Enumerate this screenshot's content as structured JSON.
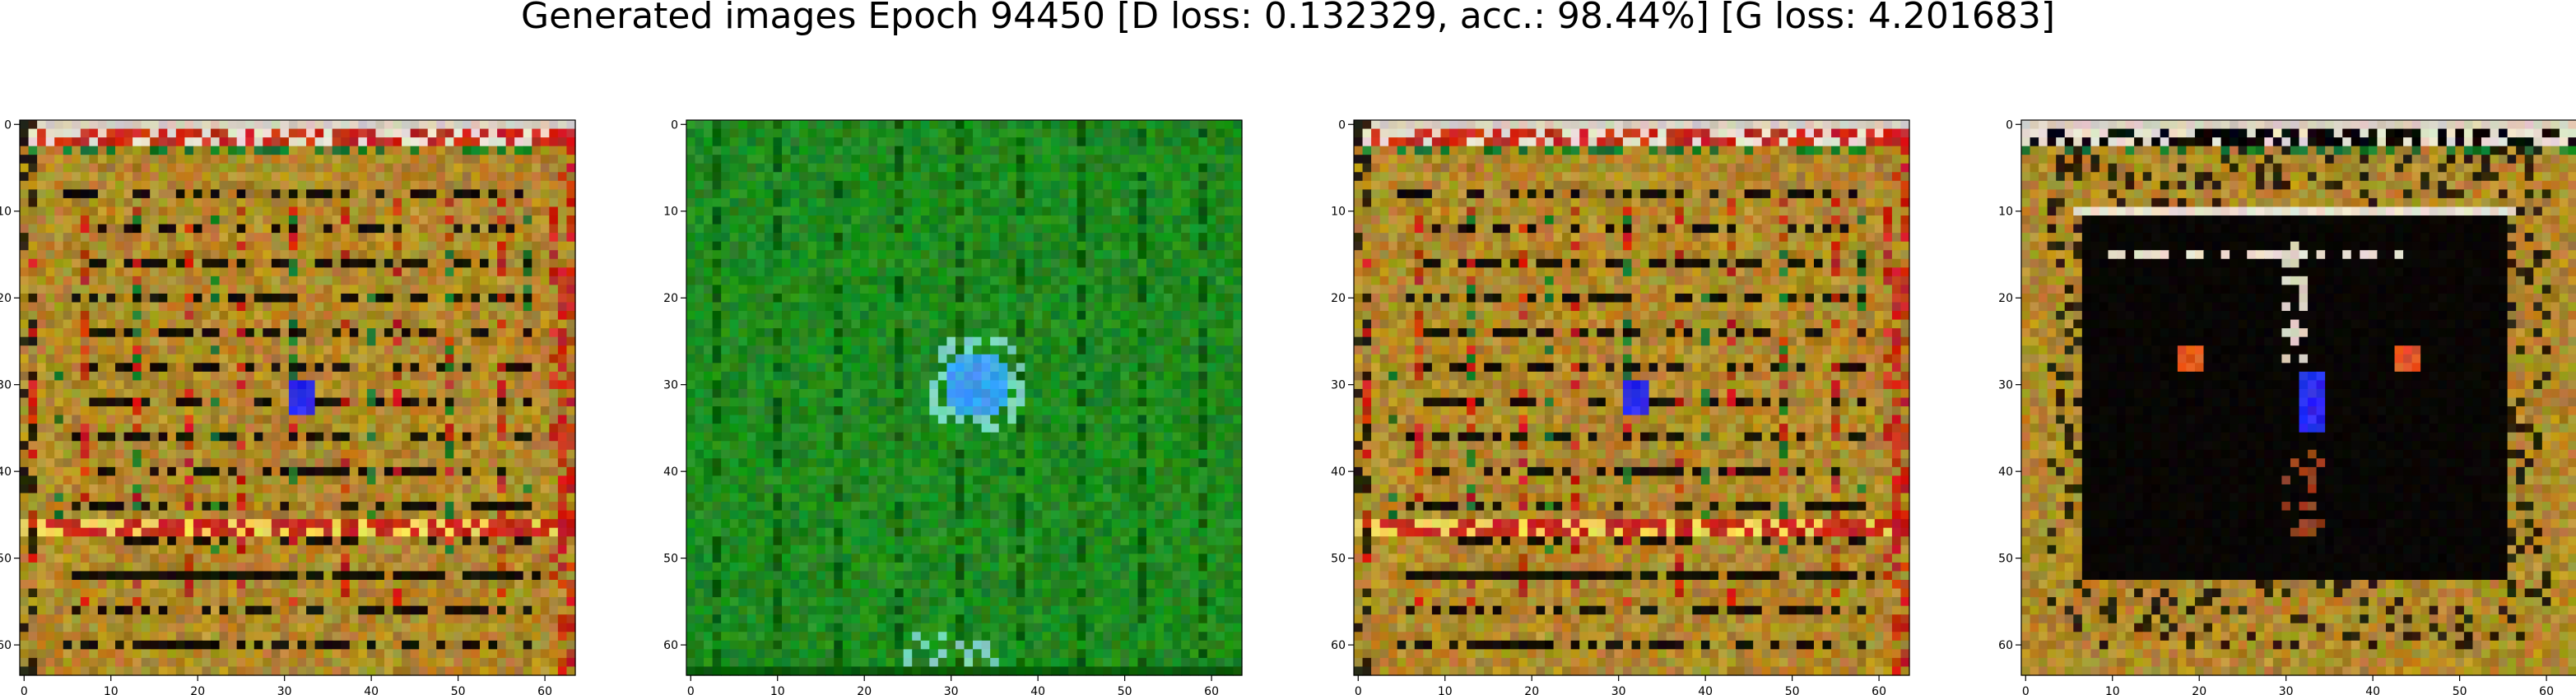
{
  "figure_title": "Generated images Epoch 94450 [D loss: 0.132329, acc.: 98.44%] [G loss: 4.201683]",
  "chart_data": [
    {
      "type": "heatmap",
      "image_theme": "ornate-gold-frame",
      "dominant_color": "#b08a2a",
      "accent_colors": [
        "#c62a1a",
        "#2a2aee",
        "#1d7a2a",
        "#e8e0d0"
      ],
      "xlim": [
        -0.5,
        63.5
      ],
      "ylim": [
        63.5,
        -0.5
      ],
      "x_ticks": [
        0,
        10,
        20,
        30,
        40,
        50,
        60
      ],
      "y_ticks": [
        0,
        10,
        20,
        30,
        40,
        50,
        60
      ],
      "x_tick_labels": [
        "0",
        "10",
        "20",
        "30",
        "40",
        "50",
        "60"
      ],
      "y_tick_labels": [
        "0",
        "10",
        "20",
        "30",
        "40",
        "50",
        "60"
      ],
      "grid": false
    },
    {
      "type": "heatmap",
      "image_theme": "green-field-blue-blob",
      "dominant_color": "#1f8a1f",
      "accent_colors": [
        "#3aa0f0",
        "#0a5a0a",
        "#7ad0c0"
      ],
      "xlim": [
        -0.5,
        63.5
      ],
      "ylim": [
        63.5,
        -0.5
      ],
      "x_ticks": [
        0,
        10,
        20,
        30,
        40,
        50,
        60
      ],
      "y_ticks": [
        0,
        10,
        20,
        30,
        40,
        50,
        60
      ],
      "x_tick_labels": [
        "0",
        "10",
        "20",
        "30",
        "40",
        "50",
        "60"
      ],
      "y_tick_labels": [
        "0",
        "10",
        "20",
        "30",
        "40",
        "50",
        "60"
      ],
      "grid": false
    },
    {
      "type": "heatmap",
      "image_theme": "ornate-gold-frame",
      "dominant_color": "#b08a2a",
      "accent_colors": [
        "#c62a1a",
        "#2a2aee",
        "#1d7a2a",
        "#e8e0d0"
      ],
      "xlim": [
        -0.5,
        63.5
      ],
      "ylim": [
        63.5,
        -0.5
      ],
      "x_ticks": [
        0,
        10,
        20,
        30,
        40,
        50,
        60
      ],
      "y_ticks": [
        0,
        10,
        20,
        30,
        40,
        50,
        60
      ],
      "x_tick_labels": [
        "0",
        "10",
        "20",
        "30",
        "40",
        "50",
        "60"
      ],
      "y_tick_labels": [
        "0",
        "10",
        "20",
        "30",
        "40",
        "50",
        "60"
      ],
      "grid": false
    },
    {
      "type": "heatmap",
      "image_theme": "gold-frame-dark-center",
      "dominant_color": "#b08a2a",
      "accent_colors": [
        "#000000",
        "#2a2aee",
        "#e05a20",
        "#e8e0d0"
      ],
      "xlim": [
        -0.5,
        63.5
      ],
      "ylim": [
        63.5,
        -0.5
      ],
      "x_ticks": [
        0,
        10,
        20,
        30,
        40,
        50,
        60
      ],
      "y_ticks": [
        0,
        10,
        20,
        30,
        40,
        50,
        60
      ],
      "x_tick_labels": [
        "0",
        "10",
        "20",
        "30",
        "40",
        "50",
        "60"
      ],
      "y_tick_labels": [
        "0",
        "10",
        "20",
        "30",
        "40",
        "50",
        "60"
      ],
      "grid": false
    }
  ]
}
